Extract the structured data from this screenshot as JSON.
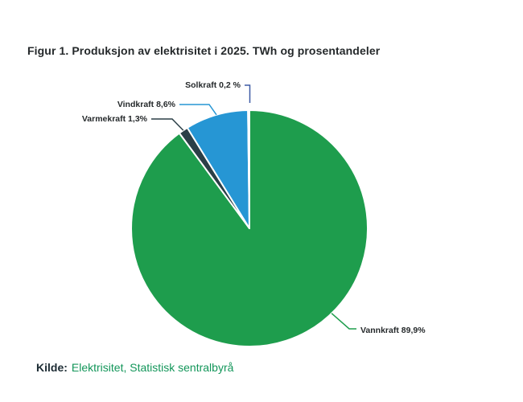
{
  "figure": {
    "title": "Figur 1. Produksjon av elektrisitet i 2025. TWh og prosentandeler",
    "source": {
      "prefix": "Kilde:",
      "text": "Elektrisitet, Statistisk sentralbyrå"
    }
  },
  "colors": {
    "vannkraft": "#1e9d4d",
    "varmekraft": "#2b3f47",
    "vindkraft": "#2696d4",
    "solkraft": "#3e5ba6",
    "source_link_green": "#13965a",
    "text_dark": "#25292b",
    "slice_border": "#ffffff"
  },
  "chart_data": {
    "type": "pie",
    "title": "Figur 1. Produksjon av elektrisitet i 2025. TWh og prosentandeler",
    "unit": "percent",
    "direction": "clockwise",
    "start_angle_deg": 0,
    "legend_position": "none",
    "labels_style": "callout-leader-lines",
    "slices": [
      {
        "name": "Vannkraft",
        "value_pct": 89.9,
        "label": "Vannkraft 89,9%",
        "color": "#1e9d4d"
      },
      {
        "name": "Varmekraft",
        "value_pct": 1.3,
        "label": "Varmekraft 1,3%",
        "color": "#2b3f47"
      },
      {
        "name": "Vindkraft",
        "value_pct": 8.6,
        "label": "Vindkraft 8,6%",
        "color": "#2696d4"
      },
      {
        "name": "Solkraft",
        "value_pct": 0.2,
        "label": "Solkraft 0,2 %",
        "color": "#3e5ba6"
      }
    ]
  }
}
